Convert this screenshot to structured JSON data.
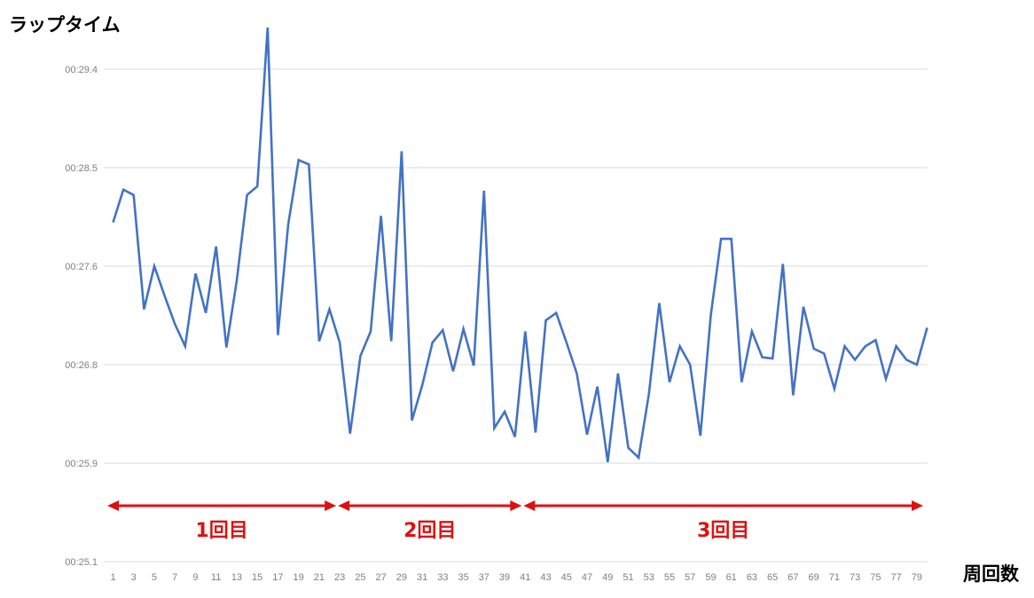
{
  "chart_data": {
    "type": "line",
    "ylabel": "ラップタイム",
    "xlabel": "周回数",
    "y_tick_labels": [
      "00:25.1",
      "00:25.9",
      "00:26.8",
      "00:27.6",
      "00:28.5",
      "00:29.4"
    ],
    "y_tick_values_seconds": [
      25.1,
      25.9,
      26.8,
      27.6,
      28.5,
      29.4
    ],
    "ylim_seconds": [
      25.1,
      29.4
    ],
    "x_tick_labels": [
      "1",
      "3",
      "5",
      "7",
      "9",
      "11",
      "13",
      "15",
      "17",
      "19",
      "21",
      "23",
      "25",
      "27",
      "29",
      "31",
      "33",
      "35",
      "37",
      "39",
      "41",
      "43",
      "45",
      "47",
      "49",
      "51",
      "53",
      "55",
      "57",
      "59",
      "61",
      "63",
      "65",
      "67",
      "69",
      "71",
      "73",
      "75",
      "77",
      "79"
    ],
    "x": [
      1,
      2,
      3,
      4,
      5,
      6,
      7,
      8,
      9,
      10,
      11,
      12,
      13,
      14,
      15,
      16,
      17,
      18,
      19,
      20,
      21,
      22,
      23,
      24,
      25,
      26,
      27,
      28,
      29,
      30,
      31,
      32,
      33,
      34,
      35,
      36,
      37,
      38,
      39,
      40,
      41,
      42,
      43,
      44,
      45,
      46,
      47,
      48,
      49,
      50,
      51,
      52,
      53,
      54,
      55,
      56,
      57,
      58,
      59,
      60,
      61,
      62,
      63,
      64,
      65,
      66,
      67,
      68,
      69,
      70,
      71,
      72,
      73,
      74,
      75,
      76,
      77,
      78,
      79,
      80
    ],
    "series": [
      {
        "name": "ラップタイム",
        "color": "#4472c4",
        "values": [
          28.0,
          28.3,
          28.25,
          27.25,
          27.6,
          27.36,
          27.13,
          26.95,
          27.54,
          27.22,
          27.78,
          26.94,
          27.48,
          28.25,
          28.33,
          29.78,
          27.04,
          27.98,
          28.57,
          28.53,
          26.99,
          27.25,
          26.98,
          26.17,
          26.87,
          27.07,
          28.06,
          26.99,
          28.65,
          26.29,
          26.61,
          26.98,
          27.08,
          26.74,
          27.09,
          26.79,
          28.29,
          26.22,
          26.37,
          26.14,
          27.07,
          26.18,
          27.16,
          27.22,
          26.98,
          26.72,
          26.16,
          26.6,
          25.91,
          26.72,
          26.04,
          25.95,
          26.53,
          27.3,
          26.64,
          26.95,
          26.8,
          26.15,
          27.2,
          27.85,
          27.85,
          26.64,
          27.07,
          26.86,
          26.85,
          27.62,
          26.52,
          27.27,
          26.93,
          26.89,
          26.58,
          26.95,
          26.84,
          26.95,
          27.0,
          26.67,
          26.95,
          26.84,
          26.8,
          27.1
        ]
      }
    ],
    "annotations": [
      {
        "label": "1回目",
        "from_lap": 1,
        "to_lap": 23,
        "color": "#dd1111"
      },
      {
        "label": "2回目",
        "from_lap": 23,
        "to_lap": 41,
        "color": "#dd1111"
      },
      {
        "label": "3回目",
        "from_lap": 41,
        "to_lap": 80,
        "color": "#dd1111"
      }
    ],
    "grid": true,
    "grid_color": "#d9d9d9"
  }
}
